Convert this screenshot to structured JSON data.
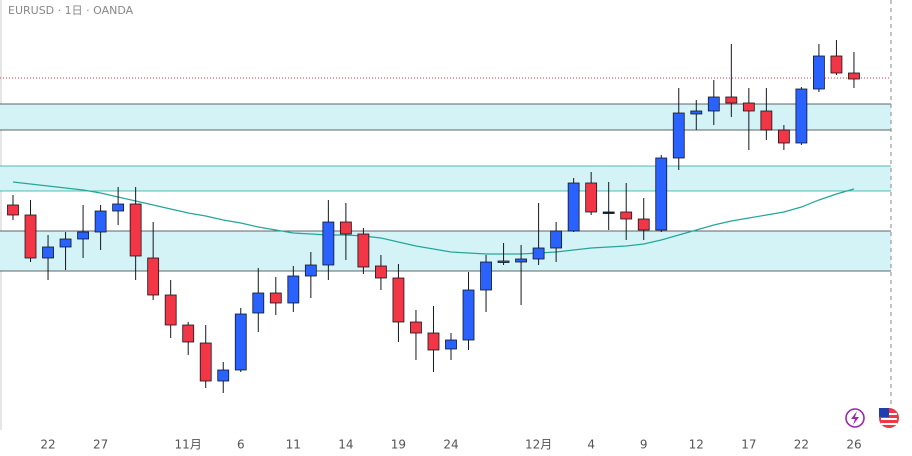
{
  "chart_data": {
    "type": "candlestick",
    "title": "EURUSD · 1日 · OANDA",
    "categories": [
      null,
      null,
      "22",
      null,
      null,
      "27",
      null,
      null,
      null,
      null,
      "11月",
      null,
      null,
      "6",
      null,
      null,
      "11",
      null,
      null,
      "14",
      null,
      null,
      "19",
      null,
      null,
      "24",
      null,
      null,
      null,
      null,
      "12月",
      null,
      null,
      "4",
      null,
      null,
      "9",
      null,
      null,
      "12",
      null,
      null,
      "17",
      null,
      null,
      "22",
      null,
      null,
      "26"
    ],
    "open": [
      225,
      215,
      172,
      183,
      191,
      198,
      219,
      226,
      172,
      135,
      105,
      87,
      49,
      60,
      117,
      137,
      127,
      154,
      165,
      208,
      196,
      164,
      152,
      108,
      97,
      81,
      90,
      140,
      168,
      168,
      171,
      182,
      199,
      247,
      218,
      218,
      211,
      200,
      272,
      316,
      319,
      333,
      327,
      319,
      300,
      287,
      341,
      374,
      357
    ],
    "high": [
      235,
      230,
      195,
      198,
      225,
      225,
      243,
      243,
      208,
      150,
      108,
      105,
      68,
      122,
      162,
      153,
      164,
      178,
      230,
      227,
      202,
      175,
      166,
      120,
      124,
      97,
      158,
      175,
      187,
      185,
      227,
      208,
      252,
      258,
      248,
      247,
      232,
      275,
      342,
      330,
      350,
      386,
      342,
      342,
      305,
      343,
      386,
      390,
      378
    ],
    "low": [
      210,
      168,
      150,
      160,
      172,
      180,
      205,
      150,
      130,
      92,
      75,
      42,
      37,
      58,
      98,
      115,
      118,
      132,
      150,
      170,
      156,
      140,
      88,
      70,
      58,
      70,
      80,
      118,
      165,
      125,
      165,
      168,
      198,
      215,
      200,
      190,
      190,
      198,
      260,
      300,
      305,
      313,
      280,
      290,
      280,
      285,
      338,
      355,
      342
    ],
    "close": [
      215,
      172,
      183,
      191,
      198,
      219,
      226,
      174,
      135,
      105,
      88,
      49,
      60,
      116,
      137,
      127,
      154,
      165,
      208,
      196,
      163,
      152,
      108,
      97,
      80,
      90,
      140,
      168,
      169,
      171,
      182,
      199,
      247,
      218,
      218,
      211,
      200,
      272,
      317,
      319,
      333,
      327,
      319,
      300,
      287,
      341,
      374,
      357,
      351
    ],
    "up_color": "#2962ff",
    "down_color": "#f23645",
    "moving_average": {
      "color": "#26a69a",
      "values": [
        248,
        246,
        244,
        242,
        240,
        237,
        233,
        229,
        225,
        221,
        217,
        214,
        210,
        207,
        203,
        200,
        197,
        196,
        195,
        195,
        194,
        192,
        188,
        184,
        181,
        178,
        177,
        176,
        176,
        176,
        177,
        178,
        180,
        182,
        183,
        184,
        186,
        190,
        195,
        200,
        205,
        209,
        212,
        215,
        218,
        223,
        230,
        236,
        241
      ]
    },
    "zones": [
      [
        300,
        326
      ],
      [
        239,
        264
      ],
      [
        159,
        199
      ]
    ],
    "current_price": 352,
    "ylim": [
      0,
      430
    ]
  }
}
